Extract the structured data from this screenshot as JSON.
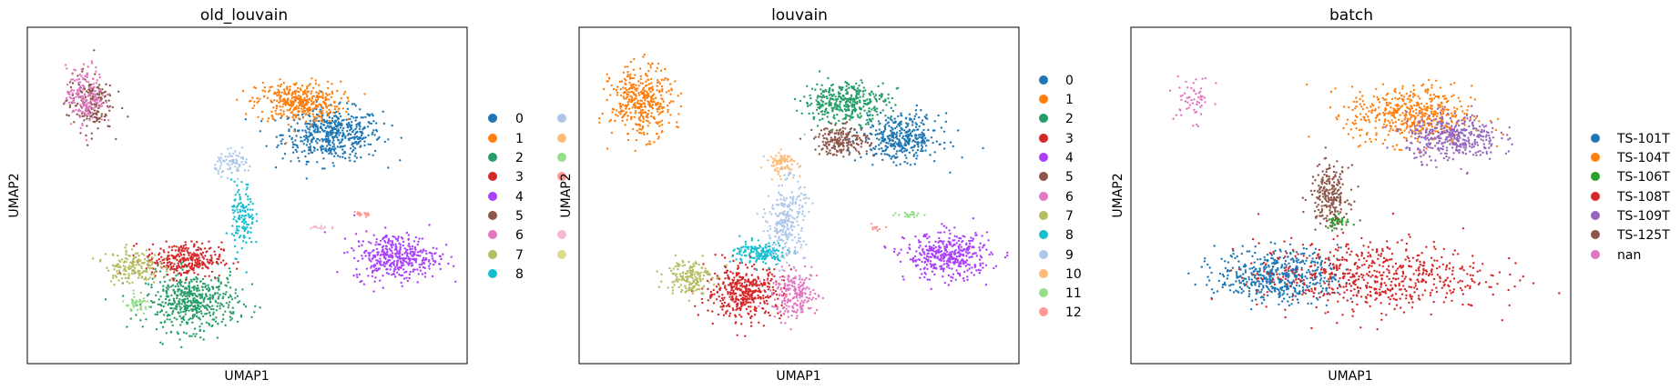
{
  "palette": {
    "default": [
      "#1f77b4",
      "#ff7f0e",
      "#279e68",
      "#d62728",
      "#aa40fc",
      "#8c564b",
      "#e377c2",
      "#b5bd61",
      "#17becf",
      "#aec7e8",
      "#ffbb78",
      "#98df8a",
      "#ff9896",
      "#f7b6d2",
      "#dbdb8d"
    ],
    "batch": [
      "#1f77b4",
      "#ff7f0e",
      "#2ca02c",
      "#d62728",
      "#9467bd",
      "#8c564b",
      "#e377c2"
    ]
  },
  "chart_data": [
    {
      "type": "scatter",
      "title": "old_louvain",
      "xlabel": "UMAP1",
      "ylabel": "UMAP2",
      "ticks": "none",
      "legend": {
        "placement": "right",
        "columns": 2,
        "entries": [
          "0",
          "1",
          "2",
          "3",
          "4",
          "5",
          "6",
          "7",
          "8",
          "",
          "",
          "",
          "",
          "",
          ""
        ],
        "colors": [
          "#1f77b4",
          "#ff7f0e",
          "#279e68",
          "#d62728",
          "#aa40fc",
          "#8c564b",
          "#e377c2",
          "#b5bd61",
          "#17becf",
          "#aec7e8",
          "#ffbb78",
          "#98df8a",
          "#ff9896",
          "#f7b6d2",
          "#dbdb8d"
        ]
      },
      "clusters": [
        {
          "label": "0",
          "color": "#1f77b4",
          "cx": 0.7,
          "cy": 0.69,
          "rx": 0.13,
          "ry": 0.09,
          "n": 520
        },
        {
          "label": "1",
          "color": "#ff7f0e",
          "cx": 0.62,
          "cy": 0.79,
          "rx": 0.11,
          "ry": 0.07,
          "n": 380
        },
        {
          "label": "2",
          "color": "#279e68",
          "cx": 0.37,
          "cy": 0.17,
          "rx": 0.12,
          "ry": 0.1,
          "n": 520
        },
        {
          "label": "3",
          "color": "#d62728",
          "cx": 0.35,
          "cy": 0.3,
          "rx": 0.1,
          "ry": 0.06,
          "n": 300
        },
        {
          "label": "4",
          "color": "#aa40fc",
          "cx": 0.85,
          "cy": 0.31,
          "rx": 0.11,
          "ry": 0.08,
          "n": 400
        },
        {
          "label": "5",
          "color": "#8c564b",
          "cx": 0.13,
          "cy": 0.79,
          "rx": 0.06,
          "ry": 0.1,
          "n": 180
        },
        {
          "label": "6",
          "color": "#e377c2",
          "cx": 0.12,
          "cy": 0.81,
          "rx": 0.05,
          "ry": 0.1,
          "n": 170
        },
        {
          "label": "7",
          "color": "#b5bd61",
          "cx": 0.23,
          "cy": 0.28,
          "rx": 0.07,
          "ry": 0.06,
          "n": 170
        },
        {
          "label": "8",
          "color": "#17becf",
          "cx": 0.49,
          "cy": 0.43,
          "rx": 0.03,
          "ry": 0.12,
          "n": 130
        },
        {
          "label": "",
          "color": "#aec7e8",
          "cx": 0.47,
          "cy": 0.6,
          "rx": 0.05,
          "ry": 0.04,
          "n": 80
        },
        {
          "label": "",
          "color": "#98df8a",
          "cx": 0.24,
          "cy": 0.16,
          "rx": 0.04,
          "ry": 0.03,
          "n": 40
        },
        {
          "label": "",
          "color": "#ff9896",
          "cx": 0.77,
          "cy": 0.44,
          "rx": 0.03,
          "ry": 0.01,
          "n": 20
        },
        {
          "label": "",
          "color": "#f7b6d2",
          "cx": 0.67,
          "cy": 0.4,
          "rx": 0.03,
          "ry": 0.01,
          "n": 15
        }
      ]
    },
    {
      "type": "scatter",
      "title": "louvain",
      "xlabel": "UMAP1",
      "ylabel": "UMAP2",
      "ticks": "none",
      "legend": {
        "placement": "right",
        "columns": 1,
        "entries": [
          "0",
          "1",
          "2",
          "3",
          "4",
          "5",
          "6",
          "7",
          "8",
          "9",
          "10",
          "11",
          "12"
        ],
        "colors": [
          "#1f77b4",
          "#ff7f0e",
          "#279e68",
          "#d62728",
          "#aa40fc",
          "#8c564b",
          "#e377c2",
          "#b5bd61",
          "#17becf",
          "#aec7e8",
          "#ffbb78",
          "#98df8a",
          "#ff9896"
        ]
      },
      "clusters": [
        {
          "label": "0",
          "color": "#1f77b4",
          "cx": 0.74,
          "cy": 0.68,
          "rx": 0.1,
          "ry": 0.08,
          "n": 380
        },
        {
          "label": "1",
          "color": "#ff7f0e",
          "cx": 0.13,
          "cy": 0.79,
          "rx": 0.08,
          "ry": 0.12,
          "n": 400
        },
        {
          "label": "2",
          "color": "#279e68",
          "cx": 0.61,
          "cy": 0.79,
          "rx": 0.11,
          "ry": 0.07,
          "n": 380
        },
        {
          "label": "3",
          "color": "#d62728",
          "cx": 0.37,
          "cy": 0.2,
          "rx": 0.1,
          "ry": 0.09,
          "n": 420
        },
        {
          "label": "4",
          "color": "#aa40fc",
          "cx": 0.85,
          "cy": 0.31,
          "rx": 0.11,
          "ry": 0.08,
          "n": 400
        },
        {
          "label": "5",
          "color": "#8c564b",
          "cx": 0.6,
          "cy": 0.67,
          "rx": 0.07,
          "ry": 0.05,
          "n": 200
        },
        {
          "label": "6",
          "color": "#e377c2",
          "cx": 0.49,
          "cy": 0.19,
          "rx": 0.06,
          "ry": 0.08,
          "n": 220
        },
        {
          "label": "7",
          "color": "#b5bd61",
          "cx": 0.24,
          "cy": 0.25,
          "rx": 0.06,
          "ry": 0.06,
          "n": 170
        },
        {
          "label": "8",
          "color": "#17becf",
          "cx": 0.41,
          "cy": 0.32,
          "rx": 0.07,
          "ry": 0.04,
          "n": 160
        },
        {
          "label": "9",
          "color": "#aec7e8",
          "cx": 0.47,
          "cy": 0.42,
          "rx": 0.05,
          "ry": 0.14,
          "n": 260
        },
        {
          "label": "10",
          "color": "#ffbb78",
          "cx": 0.46,
          "cy": 0.6,
          "rx": 0.04,
          "ry": 0.04,
          "n": 80
        },
        {
          "label": "11",
          "color": "#98df8a",
          "cx": 0.76,
          "cy": 0.44,
          "rx": 0.03,
          "ry": 0.01,
          "n": 25
        },
        {
          "label": "12",
          "color": "#ff9896",
          "cx": 0.68,
          "cy": 0.4,
          "rx": 0.02,
          "ry": 0.01,
          "n": 12
        }
      ]
    },
    {
      "type": "scatter",
      "title": "batch",
      "xlabel": "UMAP1",
      "ylabel": "UMAP2",
      "ticks": "none",
      "legend": {
        "placement": "right",
        "columns": 1,
        "entries": [
          "TS-101T",
          "TS-104T",
          "TS-106T",
          "TS-108T",
          "TS-109T",
          "TS-125T",
          "nan"
        ],
        "colors": [
          "#1f77b4",
          "#ff7f0e",
          "#2ca02c",
          "#d62728",
          "#9467bd",
          "#8c564b",
          "#e377c2"
        ]
      },
      "clusters": [
        {
          "label": "TS-101T",
          "color": "#1f77b4",
          "cx": 0.33,
          "cy": 0.25,
          "rx": 0.16,
          "ry": 0.09,
          "n": 520
        },
        {
          "label": "TS-104T",
          "color": "#ff7f0e",
          "cx": 0.64,
          "cy": 0.75,
          "rx": 0.16,
          "ry": 0.1,
          "n": 500
        },
        {
          "label": "TS-106T",
          "color": "#2ca02c",
          "cx": 0.47,
          "cy": 0.42,
          "rx": 0.03,
          "ry": 0.03,
          "n": 40
        },
        {
          "label": "TS-108T",
          "color": "#d62728",
          "cx": 0.55,
          "cy": 0.25,
          "rx": 0.3,
          "ry": 0.12,
          "n": 620
        },
        {
          "label": "TS-109T",
          "color": "#9467bd",
          "cx": 0.74,
          "cy": 0.68,
          "rx": 0.12,
          "ry": 0.08,
          "n": 380
        },
        {
          "label": "TS-125T",
          "color": "#8c564b",
          "cx": 0.45,
          "cy": 0.5,
          "rx": 0.05,
          "ry": 0.1,
          "n": 230
        },
        {
          "label": "nan",
          "color": "#e377c2",
          "cx": 0.13,
          "cy": 0.8,
          "rx": 0.05,
          "ry": 0.08,
          "n": 60
        }
      ]
    }
  ]
}
